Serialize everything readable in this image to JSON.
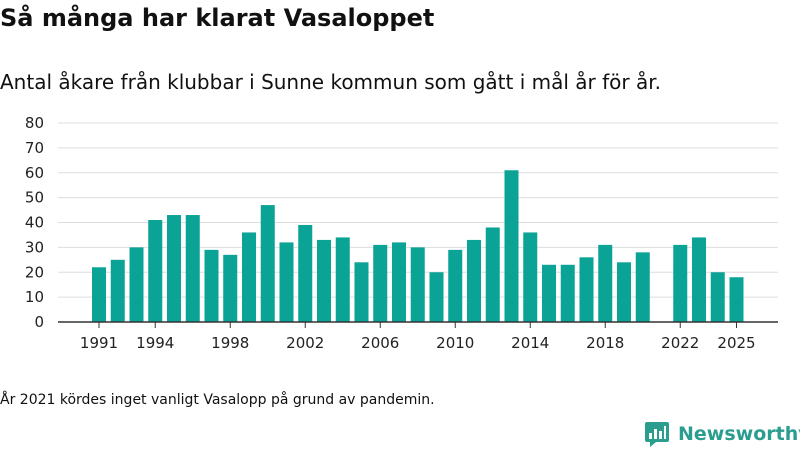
{
  "title": "Så många har klarat Vasaloppet",
  "subtitle": "Antal åkare från klubbar i Sunne kommun som gått i mål år för år.",
  "note": "År 2021 kördes inget vanligt Vasalopp på grund av pandemin.",
  "logo_text": "Newsworthy",
  "colors": {
    "bar": "#0aa395",
    "grid": "#dddddd",
    "axis": "#333333",
    "logo": "#2a9d8f"
  },
  "chart_data": {
    "type": "bar",
    "x": [
      1991,
      1992,
      1993,
      1994,
      1995,
      1996,
      1997,
      1998,
      1999,
      2000,
      2001,
      2002,
      2003,
      2004,
      2005,
      2006,
      2007,
      2008,
      2009,
      2010,
      2011,
      2012,
      2013,
      2014,
      2015,
      2016,
      2017,
      2018,
      2019,
      2020,
      2021,
      2022,
      2023,
      2024,
      2025
    ],
    "values": [
      22,
      25,
      30,
      41,
      43,
      43,
      29,
      27,
      36,
      47,
      32,
      39,
      33,
      34,
      24,
      31,
      32,
      30,
      20,
      29,
      33,
      38,
      61,
      36,
      23,
      23,
      26,
      31,
      24,
      28,
      null,
      31,
      34,
      20,
      18
    ],
    "x_tick_labels": [
      "1991",
      "1994",
      "1998",
      "2002",
      "2006",
      "2010",
      "2014",
      "2018",
      "2022",
      "2025"
    ],
    "y_ticks": [
      0,
      10,
      20,
      30,
      40,
      50,
      60,
      70,
      80
    ],
    "ylim": [
      0,
      80
    ],
    "grid": true,
    "xlabel": "",
    "ylabel": ""
  }
}
